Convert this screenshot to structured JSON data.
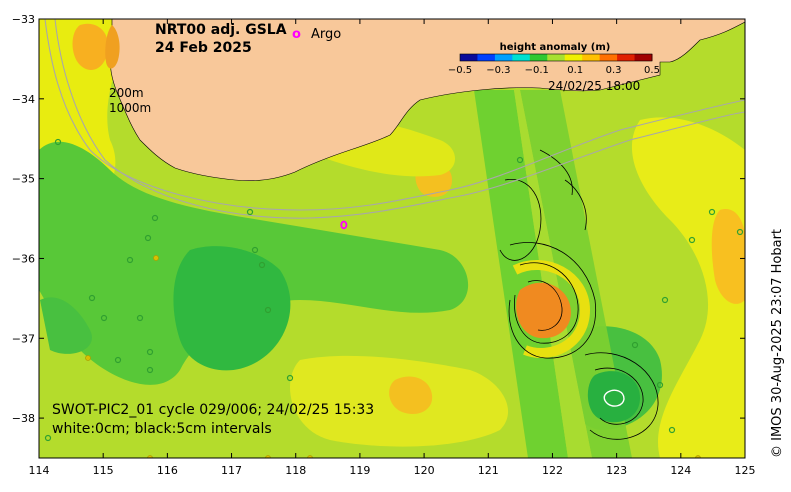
{
  "title": {
    "line1": "NRT00 adj. GSLA",
    "line2": "24 Feb 2025"
  },
  "legend": {
    "argo_marker": "o",
    "argo_label": "Argo"
  },
  "isobaths": {
    "label_200": "200m",
    "label_1000": "1000m"
  },
  "colorbar": {
    "title": "height anomaly (m)",
    "ticks": [
      "−0.5",
      "−0.3",
      "−0.1",
      "0.1",
      "0.3",
      "0.5"
    ],
    "colors": [
      "#0a0a9a",
      "#0040ff",
      "#00a0ff",
      "#00e0d0",
      "#30c830",
      "#a8e030",
      "#f0f000",
      "#ffc000",
      "#ff7000",
      "#e02000",
      "#a00000"
    ]
  },
  "swot_time_label": "24/02/25 18:00",
  "caption": {
    "line1": "SWOT-PIC2_01 cycle 029/006; 24/02/25 15:33",
    "line2": "white:0cm; black:5cm intervals"
  },
  "credit": "© IMOS 30-Aug-2025 23:07 Hobart",
  "axes": {
    "x_ticks": [
      "114",
      "115",
      "116",
      "117",
      "118",
      "119",
      "120",
      "121",
      "122",
      "123",
      "124",
      "125"
    ],
    "y_ticks": [
      "−33",
      "−34",
      "−35",
      "−36",
      "−37",
      "−38"
    ],
    "x_range": [
      114,
      125
    ],
    "y_range": [
      -38.5,
      -33
    ]
  },
  "argo_floats": [
    {
      "lon": 118.75,
      "lat": -35.58
    }
  ],
  "colors": {
    "land": "#f8c89a",
    "ocean_base": "#b8e030",
    "argo": "#ff00ff"
  }
}
